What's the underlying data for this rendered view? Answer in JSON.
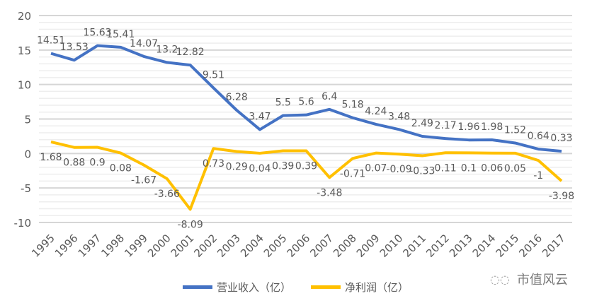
{
  "chart_data": {
    "type": "line",
    "title": "",
    "xlabel": "",
    "ylabel": "",
    "ylim": [
      -10,
      20
    ],
    "yticks": [
      20,
      15,
      10,
      5,
      0,
      -5,
      -10
    ],
    "grid": true,
    "legend_position": "bottom",
    "categories": [
      "1995",
      "1996",
      "1997",
      "1998",
      "1999",
      "2000",
      "2001",
      "2002",
      "2003",
      "2004",
      "2005",
      "2006",
      "2007",
      "2008",
      "2009",
      "2010",
      "2011",
      "2012",
      "2013",
      "2014",
      "2015",
      "2016",
      "2017"
    ],
    "series": [
      {
        "name": "营业收入（亿）",
        "color": "#4472C4",
        "values": [
          14.51,
          13.53,
          15.63,
          15.41,
          14.07,
          13.2,
          12.82,
          9.51,
          6.28,
          3.47,
          5.5,
          5.6,
          6.4,
          5.18,
          4.24,
          3.48,
          2.49,
          2.17,
          1.96,
          1.98,
          1.52,
          0.64,
          0.33
        ],
        "labels": [
          "14.51",
          "13.53",
          "15.63",
          "15.41",
          "14.07",
          "13.2",
          "12.82",
          "9.51",
          "6.28",
          "3.47",
          "5.5",
          "5.6",
          "6.4",
          "5.18",
          "4.24",
          "3.48",
          "2.49",
          "2.17",
          "1.96",
          "1.98",
          "1.52",
          "0.64",
          "0.33"
        ]
      },
      {
        "name": "净利润（亿）",
        "color": "#FFC000",
        "values": [
          1.68,
          0.88,
          0.9,
          0.08,
          -1.67,
          -3.66,
          -8.09,
          0.73,
          0.29,
          0.04,
          0.39,
          0.39,
          -3.48,
          -0.71,
          0.07,
          -0.09,
          -0.33,
          0.11,
          0.1,
          0.06,
          0.05,
          -1,
          -3.98
        ],
        "labels": [
          "1.68",
          "0.88",
          "0.9",
          "0.08",
          "-1.67",
          "-3.66",
          "-8.09",
          "0.73",
          "0.29",
          "0.04",
          "0.39",
          "0.39",
          "-3.48",
          "-0.71",
          "0.07",
          "-0.09",
          "-0.33",
          "0.11",
          "0.1",
          "0.06",
          "0.05",
          "-1",
          "-3.98"
        ]
      }
    ]
  },
  "watermark": {
    "text": "市值风云",
    "icon": "wechat-bubble-icon"
  }
}
